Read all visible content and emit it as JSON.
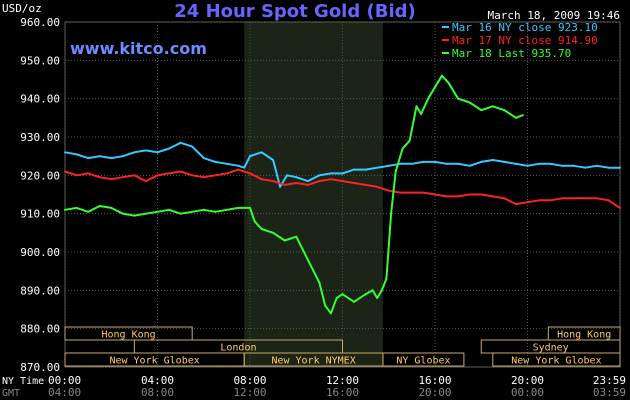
{
  "chart_data": {
    "type": "line",
    "title": "24 Hour Spot Gold (Bid)",
    "ylabel": "USD/oz",
    "timestamp": "March 18, 2009 19:46",
    "watermark": "www.kitco.com",
    "ylim": [
      870,
      960
    ],
    "yticks": [
      "960.00",
      "950.00",
      "940.00",
      "930.00",
      "920.00",
      "910.00",
      "900.00",
      "890.00",
      "880.00",
      "870.00"
    ],
    "xticks_ny": [
      "00:00",
      "04:00",
      "08:00",
      "12:00",
      "16:00",
      "20:00",
      "23:59"
    ],
    "xticks_gmt": [
      "04:00",
      "08:00",
      "12:00",
      "16:00",
      "20:00",
      "00:00",
      "03:59"
    ],
    "xlabel_ny": "NY Time",
    "xlabel_gmt": "GMT",
    "grid": true,
    "legend_position": "top-right",
    "highlight_band": {
      "from_hour": 7.75,
      "to_hour": 13.75
    },
    "markets": [
      {
        "label": "Hong Kong",
        "start": 0.0,
        "end": 5.5,
        "row": 0
      },
      {
        "label": "Hong Kong",
        "start": 20.9,
        "end": 24.0,
        "row": 0
      },
      {
        "label": "London",
        "start": 3.0,
        "end": 12.0,
        "row": 1
      },
      {
        "label": "Sydney",
        "start": 18.0,
        "end": 24.0,
        "row": 1
      },
      {
        "label": "New York Globex",
        "start": 0.0,
        "end": 7.75,
        "row": 2
      },
      {
        "label": "New York NYMEX",
        "start": 7.75,
        "end": 13.75,
        "row": 2
      },
      {
        "label": "NY Globex",
        "start": 13.75,
        "end": 17.25,
        "row": 2
      },
      {
        "label": "New York Globex",
        "start": 18.5,
        "end": 24.0,
        "row": 2
      }
    ],
    "series": [
      {
        "name": "Mar 16 NY close 923.10",
        "color": "#33ccff",
        "x": [
          0,
          0.5,
          1,
          1.5,
          2,
          2.5,
          3,
          3.5,
          4,
          4.5,
          5,
          5.5,
          6,
          6.5,
          7,
          7.5,
          7.75,
          8,
          8.5,
          9,
          9.3,
          9.6,
          10,
          10.5,
          11,
          11.5,
          12,
          12.5,
          13,
          13.5,
          14,
          14.5,
          15,
          15.5,
          16,
          16.5,
          17,
          17.5,
          18,
          18.5,
          19,
          19.5,
          20,
          20.5,
          21,
          21.5,
          22,
          22.5,
          23,
          23.5,
          24
        ],
        "values": [
          926,
          925.5,
          924.5,
          925,
          924.5,
          925,
          926,
          926.5,
          926,
          927,
          928.5,
          927.5,
          924.5,
          923.5,
          923,
          922.5,
          922,
          925,
          926,
          924,
          917,
          920,
          919.5,
          918.5,
          920,
          920.5,
          920.5,
          921.5,
          921.5,
          922,
          922.5,
          923,
          923,
          923.5,
          923.5,
          923,
          923,
          922.5,
          923.5,
          924,
          923.5,
          923,
          922.5,
          923,
          923,
          922.5,
          922.5,
          922,
          922.5,
          922,
          922
        ]
      },
      {
        "name": "Mar 17 NY close 914.90",
        "color": "#ff2222",
        "x": [
          0,
          0.5,
          1,
          1.5,
          2,
          2.5,
          3,
          3.5,
          4,
          4.5,
          5,
          5.5,
          6,
          6.5,
          7,
          7.5,
          8,
          8.5,
          9,
          9.5,
          10,
          10.5,
          11,
          11.5,
          12,
          12.5,
          13,
          13.5,
          14,
          14.5,
          15,
          15.5,
          16,
          16.5,
          17,
          17.5,
          18,
          18.5,
          19,
          19.5,
          20,
          20.5,
          21,
          21.5,
          22,
          22.5,
          23,
          23.5,
          24
        ],
        "values": [
          921,
          920,
          920.5,
          919.5,
          919,
          919.5,
          920,
          918.5,
          920,
          920.5,
          921,
          920,
          919.5,
          920,
          920.5,
          921.5,
          920.5,
          919,
          918.5,
          917.5,
          918,
          917.5,
          918.5,
          919,
          918.5,
          918,
          917.5,
          917,
          916,
          915.5,
          915.5,
          915.5,
          915,
          914.5,
          914.5,
          915,
          915,
          914.5,
          914,
          912.5,
          913,
          913.5,
          913.5,
          914,
          914,
          914,
          914,
          913.5,
          911.5
        ]
      },
      {
        "name": "Mar 18 Last 935.70",
        "color": "#33ff33",
        "x": [
          0,
          0.5,
          1,
          1.5,
          2,
          2.5,
          3,
          3.5,
          4,
          4.5,
          5,
          5.5,
          6,
          6.5,
          7,
          7.5,
          8,
          8.2,
          8.5,
          9,
          9.5,
          10,
          10.5,
          11,
          11.25,
          11.5,
          11.75,
          12,
          12.5,
          13,
          13.3,
          13.5,
          13.7,
          13.9,
          14.1,
          14.3,
          14.6,
          14.9,
          15.2,
          15.4,
          15.7,
          16,
          16.3,
          16.6,
          17,
          17.5,
          18,
          18.5,
          19,
          19.5,
          19.8
        ],
        "values": [
          911,
          911.5,
          910.5,
          912,
          911.5,
          910,
          909.5,
          910,
          910.5,
          911,
          910,
          910.5,
          911,
          910.5,
          911,
          911.5,
          911.5,
          908,
          906,
          905,
          903,
          904,
          898,
          892,
          886,
          884,
          888,
          889,
          887,
          889,
          890,
          888,
          890,
          893,
          910,
          921,
          927,
          929,
          938,
          936,
          940,
          943,
          946,
          944,
          940,
          939,
          937,
          938,
          937,
          935,
          935.7
        ]
      }
    ]
  }
}
